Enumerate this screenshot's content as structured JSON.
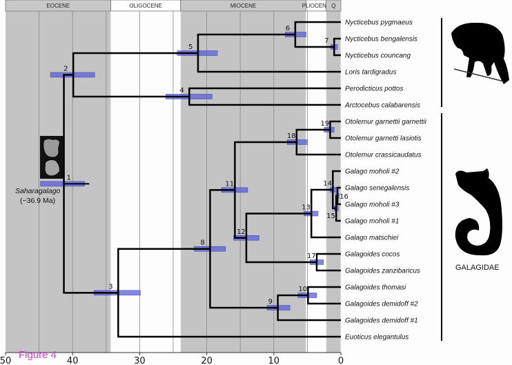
{
  "figure_label": "Figure 4",
  "colors": {
    "gray_band": "#c4c4c4",
    "white_band": "#fdfdfd",
    "ci_bar": "#5a5fd8",
    "branch": "#000000",
    "figure_label": "#d23bd2"
  },
  "axis": {
    "ticks": [
      50,
      40,
      30,
      20,
      10,
      0
    ],
    "range_ma": [
      50,
      0
    ],
    "minor_grid_step_ma": 5
  },
  "epochs": [
    {
      "name": "EOCENE",
      "start": 50,
      "end": 34.3,
      "shade": "gray"
    },
    {
      "name": "OLIGOCENE",
      "start": 34.3,
      "end": 23.9,
      "shade": "white"
    },
    {
      "name": "MIOCENE",
      "start": 23.9,
      "end": 5.2,
      "shade": "gray"
    },
    {
      "name": "PLIOCENE",
      "start": 5.2,
      "end": 2.2,
      "shade": "white"
    },
    {
      "name": "Q",
      "start": 2.2,
      "end": 0,
      "shade": "gray"
    }
  ],
  "tips": [
    "Nycticebus pygmaeus",
    "Nycticebus bengalensis",
    "Nycticebus councang",
    "Loris tardigradus",
    "Perodicticus pottos",
    "Arctocebus calabarensis",
    "Otolemur garnettii garnettii",
    "Otolemur garnetti lasiotis",
    "Otolemur crassicaudatus",
    "Galago moholi #2",
    "Galago senegalensis",
    "Galago moholi #3",
    "Galago moholi #1",
    "Galago matschiei",
    "Galagoides cocos",
    "Galagoides zanzibaricus",
    "Galagoides thomasi",
    "Galagoides demidoff #2",
    "Galagoides demidoff #1",
    "Euoticus elegantulus"
  ],
  "nodes": [
    {
      "id": "1",
      "age": 41.3,
      "ci": [
        44.8,
        38.2
      ],
      "children": [
        "n2",
        "n3"
      ]
    },
    {
      "id": "2",
      "age": 39.9,
      "ci": [
        43.3,
        36.7
      ],
      "children": [
        "n5",
        "n4"
      ]
    },
    {
      "id": "5",
      "age": 21.3,
      "ci": [
        24.4,
        18.4
      ],
      "children": [
        "n6",
        "t3"
      ]
    },
    {
      "id": "6",
      "age": 6.8,
      "ci": [
        8.3,
        5.2
      ],
      "children": [
        "t0",
        "n7"
      ]
    },
    {
      "id": "7",
      "age": 1.0,
      "ci": [
        1.5,
        0.5
      ],
      "children": [
        "t1",
        "t2"
      ]
    },
    {
      "id": "4",
      "age": 22.6,
      "ci": [
        26.1,
        19.2
      ],
      "children": [
        "t4",
        "t5"
      ]
    },
    {
      "id": "3",
      "age": 33.2,
      "ci": [
        36.8,
        29.9
      ],
      "children": [
        "n8",
        "t19"
      ]
    },
    {
      "id": "8",
      "age": 19.5,
      "ci": [
        21.9,
        17.2
      ],
      "children": [
        "n11",
        "n9"
      ]
    },
    {
      "id": "11",
      "age": 15.8,
      "ci": [
        17.8,
        13.9
      ],
      "children": [
        "n18",
        "n12"
      ]
    },
    {
      "id": "18",
      "age": 6.6,
      "ci": [
        8.0,
        5.0
      ],
      "children": [
        "n19",
        "t8"
      ]
    },
    {
      "id": "19",
      "age": 1.6,
      "ci": [
        2.5,
        1.0
      ],
      "children": [
        "t6",
        "t7"
      ]
    },
    {
      "id": "12",
      "age": 14.1,
      "ci": [
        16.0,
        12.2
      ],
      "children": [
        "n13",
        "n17"
      ]
    },
    {
      "id": "13",
      "age": 4.4,
      "ci": [
        5.5,
        3.4
      ],
      "children": [
        "n14",
        "t13"
      ]
    },
    {
      "id": "14",
      "age": 1.2,
      "ci": [
        1.6,
        0.6
      ],
      "children": [
        "t9",
        "n15"
      ]
    },
    {
      "id": "15",
      "age": 0.7,
      "ci": [
        1.0,
        0.4
      ],
      "children": [
        "n16",
        "t12"
      ]
    },
    {
      "id": "16",
      "age": 0.5,
      "ci": [
        0.8,
        0.3
      ],
      "children": [
        "t10",
        "t11"
      ]
    },
    {
      "id": "17",
      "age": 3.6,
      "ci": [
        4.6,
        2.6
      ],
      "children": [
        "t14",
        "t15"
      ]
    },
    {
      "id": "9",
      "age": 9.4,
      "ci": [
        11.0,
        7.6
      ],
      "children": [
        "n10",
        "t18"
      ]
    },
    {
      "id": "10",
      "age": 4.9,
      "ci": [
        6.4,
        3.6
      ],
      "children": [
        "t16",
        "t17"
      ]
    }
  ],
  "fossil": {
    "name": "Saharagalago",
    "age_label": "(~36.9 Ma)"
  },
  "clades": [
    {
      "name": "",
      "first_tip": 0,
      "last_tip": 5,
      "silhouette": "loris-silhouette"
    },
    {
      "name": "GALAGIDAE",
      "first_tip": 6,
      "last_tip": 19,
      "silhouette": "galago-silhouette"
    }
  ]
}
